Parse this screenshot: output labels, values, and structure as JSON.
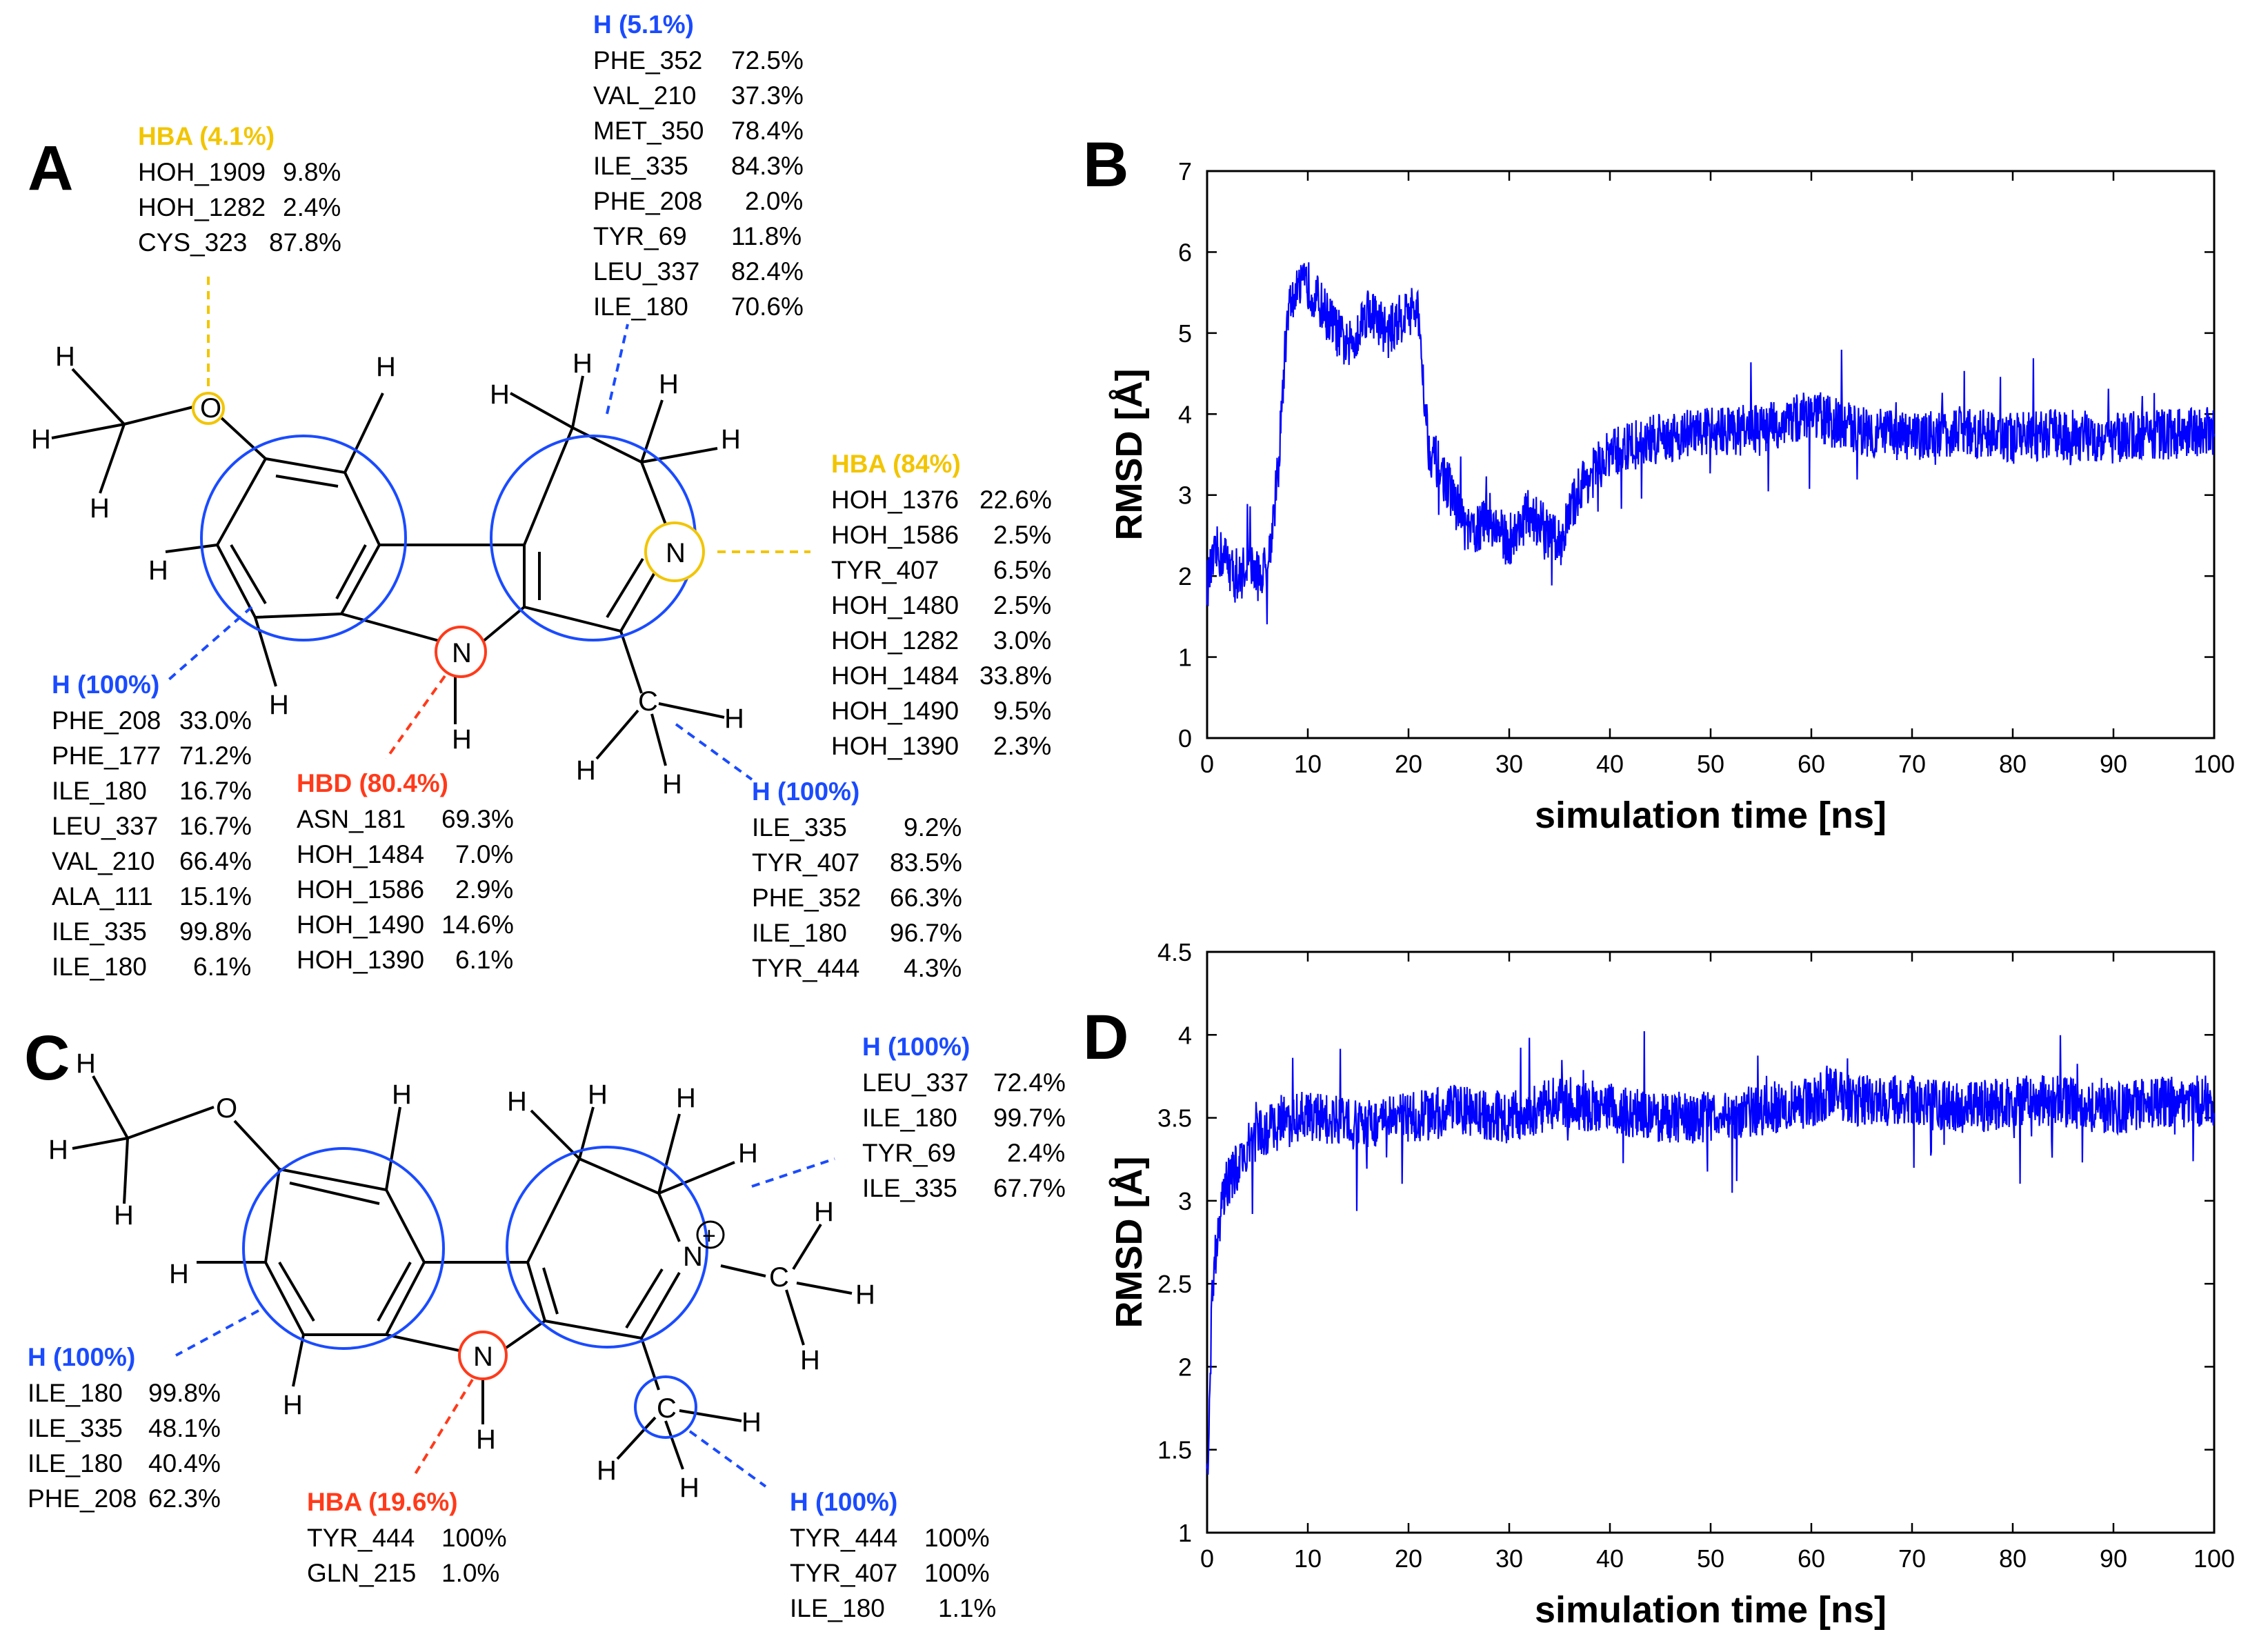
{
  "panels": {
    "A": {
      "label": "A",
      "atoms": {
        "O": "O",
        "N_ring": "N",
        "N_pyr": "N",
        "C_methyl": "C",
        "H": "H"
      },
      "groups": [
        {
          "title": "HBA (4.1%)",
          "color": "#f2c500",
          "rows": [
            [
              "HOH_1909",
              "9.8%"
            ],
            [
              "HOH_1282",
              "2.4%"
            ],
            [
              "CYS_323",
              "87.8%"
            ]
          ]
        },
        {
          "title": "H (5.1%)",
          "color": "#1a4bff",
          "rows": [
            [
              "PHE_352",
              "72.5%"
            ],
            [
              "VAL_210",
              "37.3%"
            ],
            [
              "MET_350",
              "78.4%"
            ],
            [
              "ILE_335",
              "84.3%"
            ],
            [
              "PHE_208",
              "2.0%"
            ],
            [
              "TYR_69",
              "11.8%"
            ],
            [
              "LEU_337",
              "82.4%"
            ],
            [
              "ILE_180",
              "70.6%"
            ]
          ]
        },
        {
          "title": "HBA (84%)",
          "color": "#f2c500",
          "rows": [
            [
              "HOH_1376",
              "22.6%"
            ],
            [
              "HOH_1586",
              "2.5%"
            ],
            [
              "TYR_407",
              "6.5%"
            ],
            [
              "HOH_1480",
              "2.5%"
            ],
            [
              "HOH_1282",
              "3.0%"
            ],
            [
              "HOH_1484",
              "33.8%"
            ],
            [
              "HOH_1490",
              "9.5%"
            ],
            [
              "HOH_1390",
              "2.3%"
            ]
          ]
        },
        {
          "title": "H (100%)",
          "color": "#1a4bff",
          "rows": [
            [
              "PHE_208",
              "33.0%"
            ],
            [
              "PHE_177",
              "71.2%"
            ],
            [
              "ILE_180",
              "16.7%"
            ],
            [
              "LEU_337",
              "16.7%"
            ],
            [
              "VAL_210",
              "66.4%"
            ],
            [
              "ALA_111",
              "15.1%"
            ],
            [
              "ILE_335",
              "99.8%"
            ],
            [
              "ILE_180",
              "6.1%"
            ]
          ]
        },
        {
          "title": "HBD (80.4%)",
          "color": "#ff3a1a",
          "rows": [
            [
              "ASN_181",
              "69.3%"
            ],
            [
              "HOH_1484",
              "7.0%"
            ],
            [
              "HOH_1586",
              "2.9%"
            ],
            [
              "HOH_1490",
              "14.6%"
            ],
            [
              "HOH_1390",
              "6.1%"
            ]
          ]
        },
        {
          "title": "H (100%)",
          "color": "#1a4bff",
          "rows": [
            [
              "ILE_335",
              "9.2%"
            ],
            [
              "TYR_407",
              "83.5%"
            ],
            [
              "PHE_352",
              "66.3%"
            ],
            [
              "ILE_180",
              "96.7%"
            ],
            [
              "TYR_444",
              "4.3%"
            ]
          ]
        }
      ]
    },
    "C": {
      "label": "C",
      "atoms": {
        "O": "O",
        "N_ring": "N",
        "N_pyr": "N",
        "charge": "+",
        "C_methyl": "C",
        "C_nmethyl": "C",
        "H": "H"
      },
      "groups": [
        {
          "title": "H (100%)",
          "color": "#1a4bff",
          "rows": [
            [
              "LEU_337",
              "72.4%"
            ],
            [
              "ILE_180",
              "99.7%"
            ],
            [
              "TYR_69",
              "2.4%"
            ],
            [
              "ILE_335",
              "67.7%"
            ]
          ]
        },
        {
          "title": "H (100%)",
          "color": "#1a4bff",
          "rows": [
            [
              "ILE_180",
              "99.8%"
            ],
            [
              "ILE_335",
              "48.1%"
            ],
            [
              "ILE_180",
              "40.4%"
            ],
            [
              "PHE_208",
              "62.3%"
            ]
          ]
        },
        {
          "title": "HBA (19.6%)",
          "color": "#ff3a1a",
          "rows": [
            [
              "TYR_444",
              "100%"
            ],
            [
              "GLN_215",
              "1.0%"
            ]
          ]
        },
        {
          "title": "H (100%)",
          "color": "#1a4bff",
          "rows": [
            [
              "TYR_444",
              "100%"
            ],
            [
              "TYR_407",
              "100%"
            ],
            [
              "ILE_180",
              "1.1%"
            ]
          ]
        }
      ]
    },
    "B": {
      "label": "B"
    },
    "D": {
      "label": "D"
    }
  },
  "chart_data": [
    {
      "type": "line",
      "panel": "B",
      "title": "",
      "xlabel": "simulation time [ns]",
      "ylabel": "RMSD [Å]",
      "xlim": [
        0,
        100
      ],
      "ylim": [
        0,
        7
      ],
      "xticks": [
        0,
        10,
        20,
        30,
        40,
        50,
        60,
        70,
        80,
        90,
        100
      ],
      "yticks": [
        0,
        1,
        2,
        3,
        4,
        5,
        6,
        7
      ],
      "series_color": "#0000ff",
      "series": [
        {
          "name": "RMSD",
          "x": [
            0,
            1,
            2,
            3,
            4,
            5,
            6,
            7,
            8,
            9,
            10,
            12,
            14,
            16,
            18,
            20,
            21,
            22,
            24,
            26,
            28,
            30,
            32,
            34,
            35,
            37,
            40,
            42,
            45,
            50,
            55,
            60,
            62,
            65,
            70,
            75,
            80,
            85,
            90,
            95,
            100
          ],
          "y": [
            1.9,
            2.3,
            2.2,
            1.9,
            2.2,
            2.0,
            2.1,
            3.2,
            5.3,
            5.5,
            5.6,
            5.2,
            4.8,
            5.3,
            5.0,
            5.3,
            5.2,
            3.6,
            3.1,
            2.5,
            2.7,
            2.4,
            2.8,
            2.5,
            2.4,
            3.1,
            3.5,
            3.6,
            3.7,
            3.8,
            3.8,
            4.0,
            3.9,
            3.8,
            3.7,
            3.8,
            3.7,
            3.75,
            3.7,
            3.75,
            3.8
          ]
        }
      ]
    },
    {
      "type": "line",
      "panel": "D",
      "title": "",
      "xlabel": "simulation time [ns]",
      "ylabel": "RMSD [Å]",
      "xlim": [
        0,
        100
      ],
      "ylim": [
        1,
        4.5
      ],
      "xticks": [
        0,
        10,
        20,
        30,
        40,
        50,
        60,
        70,
        80,
        90,
        100
      ],
      "yticks": [
        1,
        1.5,
        2,
        2.5,
        3,
        3.5,
        4,
        4.5
      ],
      "series_color": "#0000ff",
      "series": [
        {
          "name": "RMSD",
          "x": [
            0,
            0.5,
            1,
            1.5,
            2,
            3,
            4,
            5,
            7,
            9,
            12,
            15,
            20,
            25,
            30,
            35,
            40,
            45,
            50,
            55,
            60,
            62,
            65,
            70,
            75,
            80,
            85,
            90,
            95,
            100
          ],
          "y": [
            1.3,
            2.4,
            2.8,
            3.0,
            3.1,
            3.2,
            3.3,
            3.4,
            3.45,
            3.5,
            3.5,
            3.45,
            3.5,
            3.55,
            3.5,
            3.6,
            3.55,
            3.5,
            3.5,
            3.55,
            3.6,
            3.65,
            3.6,
            3.6,
            3.55,
            3.6,
            3.6,
            3.55,
            3.6,
            3.6
          ]
        }
      ]
    }
  ]
}
